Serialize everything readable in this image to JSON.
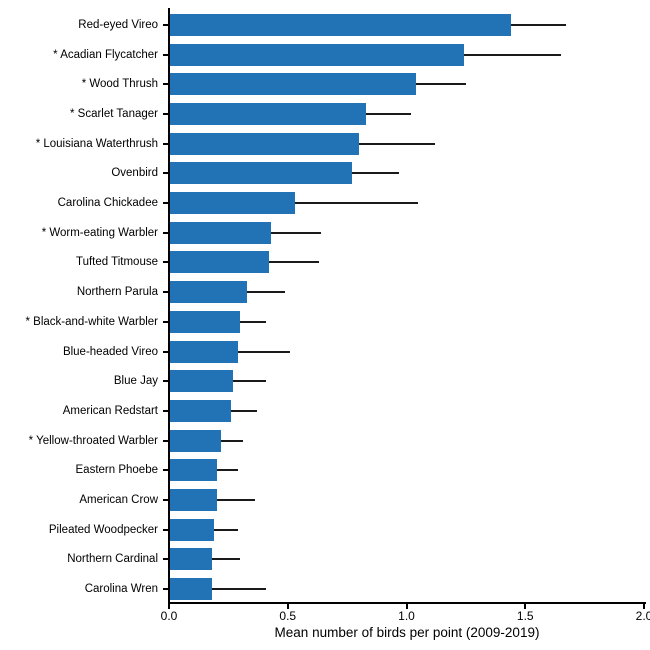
{
  "chart_data": {
    "type": "bar",
    "orientation": "horizontal",
    "title": "",
    "xlabel": "Mean number of birds per point (2009-2019)",
    "ylabel": "",
    "xlim": [
      0.0,
      2.0
    ],
    "xticks": [
      0.0,
      0.5,
      1.0,
      1.5,
      2.0
    ],
    "xtick_labels": [
      "0.0",
      "0.5",
      "1.0",
      "1.5",
      "2.0"
    ],
    "grid": false,
    "legend": false,
    "bar_color": "#2272b6",
    "error_color": "#1a1a1a",
    "categories": [
      "Red-eyed Vireo",
      "* Acadian Flycatcher",
      "* Wood Thrush",
      "* Scarlet Tanager",
      "* Louisiana Waterthrush",
      "Ovenbird",
      "Carolina Chickadee",
      "* Worm-eating Warbler",
      "Tufted Titmouse",
      "Northern Parula",
      "* Black-and-white Warbler",
      "Blue-headed Vireo",
      "Blue Jay",
      "American Redstart",
      "* Yellow-throated Warbler",
      "Eastern Phoebe",
      "American Crow",
      "Pileated Woodpecker",
      "Northern Cardinal",
      "Carolina Wren"
    ],
    "series": [
      {
        "name": "Mean number of birds per point",
        "values": [
          1.44,
          1.24,
          1.04,
          0.83,
          0.8,
          0.77,
          0.53,
          0.43,
          0.42,
          0.33,
          0.3,
          0.29,
          0.27,
          0.26,
          0.22,
          0.2,
          0.2,
          0.19,
          0.18,
          0.18
        ],
        "error_high": [
          1.67,
          1.65,
          1.25,
          1.02,
          1.12,
          0.97,
          1.05,
          0.64,
          0.63,
          0.49,
          0.41,
          0.51,
          0.41,
          0.37,
          0.31,
          0.29,
          0.36,
          0.29,
          0.3,
          0.41
        ]
      }
    ]
  }
}
